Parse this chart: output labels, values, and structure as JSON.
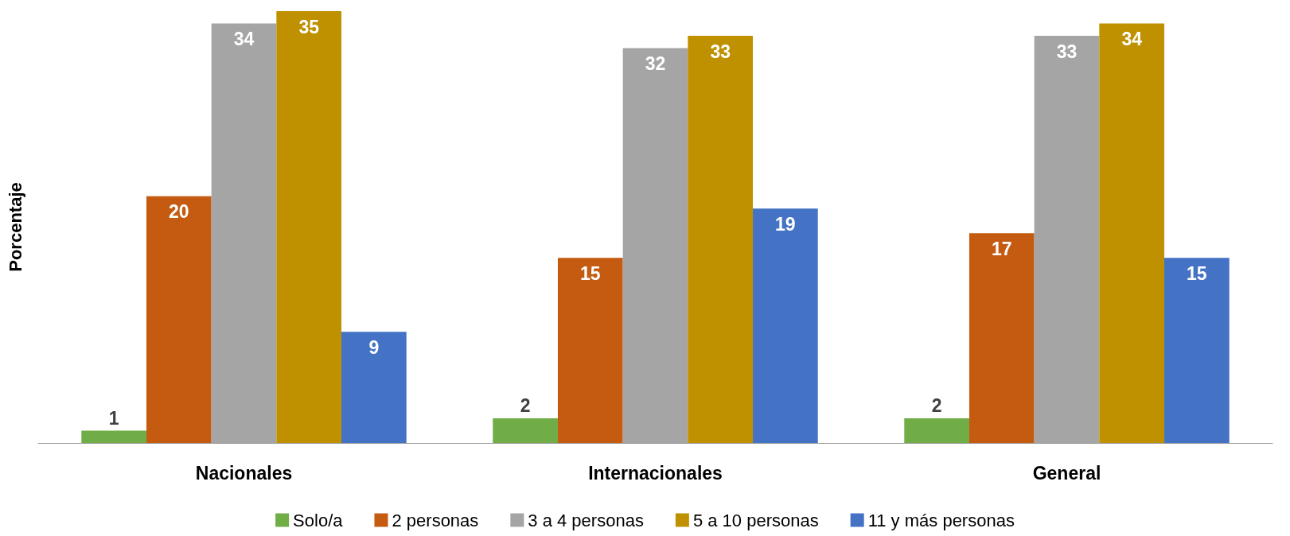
{
  "chart_data": {
    "type": "bar",
    "ylabel": "Porcentaje",
    "categories": [
      "Nacionales",
      "Internacionales",
      "General"
    ],
    "series": [
      {
        "name": "Solo/a",
        "color": "#70ad47",
        "values": [
          1,
          2,
          2
        ]
      },
      {
        "name": "2 personas",
        "color": "#c55a11",
        "values": [
          20,
          15,
          17
        ]
      },
      {
        "name": "3 a 4 personas",
        "color": "#a5a5a5",
        "values": [
          34,
          32,
          33
        ]
      },
      {
        "name": "5 a 10 personas",
        "color": "#bf9000",
        "values": [
          35,
          33,
          34
        ]
      },
      {
        "name": "11 y más personas",
        "color": "#4472c4",
        "values": [
          9,
          19,
          15
        ]
      }
    ],
    "data_labels": true,
    "grid": false,
    "legend": "bottom",
    "tick_labels": "x"
  }
}
